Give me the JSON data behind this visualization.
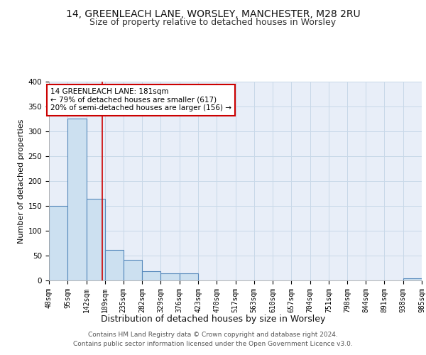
{
  "title_line1": "14, GREENLEACH LANE, WORSLEY, MANCHESTER, M28 2RU",
  "title_line2": "Size of property relative to detached houses in Worsley",
  "xlabel": "Distribution of detached houses by size in Worsley",
  "ylabel": "Number of detached properties",
  "bin_edges": [
    48,
    95,
    142,
    189,
    235,
    282,
    329,
    376,
    423,
    470,
    517,
    563,
    610,
    657,
    704,
    751,
    798,
    844,
    891,
    938,
    985
  ],
  "bar_heights": [
    150,
    325,
    165,
    62,
    42,
    18,
    15,
    14,
    0,
    0,
    0,
    0,
    0,
    0,
    0,
    0,
    0,
    0,
    0,
    5
  ],
  "bar_color": "#cce0f0",
  "bar_edge_color": "#5588bb",
  "grid_color": "#c8d8e8",
  "background_color": "#e8eef8",
  "vline_x": 181,
  "vline_color": "#cc0000",
  "annotation_line1": "14 GREENLEACH LANE: 181sqm",
  "annotation_line2": "← 79% of detached houses are smaller (617)",
  "annotation_line3": "20% of semi-detached houses are larger (156) →",
  "annotation_box_color": "#ffffff",
  "annotation_box_edge": "#cc0000",
  "ylim": [
    0,
    400
  ],
  "yticks": [
    0,
    50,
    100,
    150,
    200,
    250,
    300,
    350,
    400
  ],
  "footer_line1": "Contains HM Land Registry data © Crown copyright and database right 2024.",
  "footer_line2": "Contains public sector information licensed under the Open Government Licence v3.0.",
  "title_fontsize": 10,
  "subtitle_fontsize": 9,
  "ylabel_fontsize": 8,
  "xlabel_fontsize": 9,
  "tick_fontsize": 7,
  "annot_fontsize": 7.5,
  "footer_fontsize": 6.5
}
